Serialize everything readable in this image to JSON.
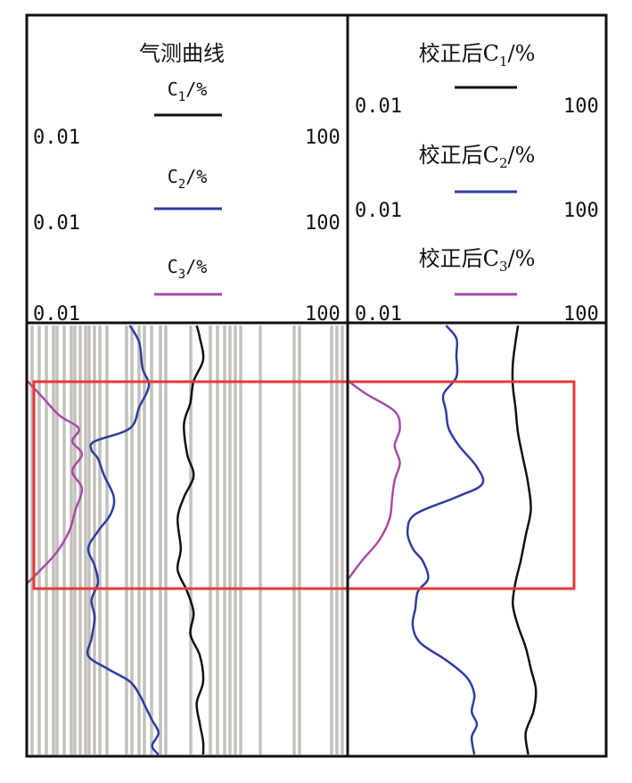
{
  "chart_data": [
    {
      "type": "line",
      "title": "气测曲线",
      "series": [
        {
          "name": "C1/%",
          "key": "C1",
          "color": "#111111",
          "range": [
            0.01,
            100
          ],
          "d": [
            [
              0,
              0.53
            ],
            [
              0.03,
              0.54
            ],
            [
              0.08,
              0.55
            ],
            [
              0.13,
              0.52
            ],
            [
              0.18,
              0.51
            ],
            [
              0.23,
              0.49
            ],
            [
              0.3,
              0.5
            ],
            [
              0.35,
              0.52
            ],
            [
              0.4,
              0.49
            ],
            [
              0.45,
              0.47
            ],
            [
              0.52,
              0.48
            ],
            [
              0.57,
              0.47
            ],
            [
              0.62,
              0.5
            ],
            [
              0.67,
              0.52
            ],
            [
              0.72,
              0.51
            ],
            [
              0.77,
              0.54
            ],
            [
              0.83,
              0.55
            ],
            [
              0.88,
              0.53
            ],
            [
              0.93,
              0.54
            ],
            [
              0.97,
              0.55
            ],
            [
              1.0,
              0.55
            ]
          ]
        },
        {
          "name": "C2/%",
          "key": "C2",
          "color": "#2e3d9f",
          "range": [
            0.01,
            100
          ],
          "d": [
            [
              0,
              0.32
            ],
            [
              0.04,
              0.35
            ],
            [
              0.1,
              0.36
            ],
            [
              0.14,
              0.38
            ],
            [
              0.19,
              0.35
            ],
            [
              0.24,
              0.32
            ],
            [
              0.27,
              0.21
            ],
            [
              0.29,
              0.2
            ],
            [
              0.31,
              0.22
            ],
            [
              0.35,
              0.24
            ],
            [
              0.4,
              0.27
            ],
            [
              0.44,
              0.26
            ],
            [
              0.48,
              0.22
            ],
            [
              0.52,
              0.19
            ],
            [
              0.56,
              0.21
            ],
            [
              0.6,
              0.22
            ],
            [
              0.64,
              0.2
            ],
            [
              0.68,
              0.21
            ],
            [
              0.73,
              0.2
            ],
            [
              0.77,
              0.19
            ],
            [
              0.8,
              0.25
            ],
            [
              0.83,
              0.32
            ],
            [
              0.86,
              0.35
            ],
            [
              0.89,
              0.37
            ],
            [
              0.92,
              0.39
            ],
            [
              0.95,
              0.41
            ],
            [
              0.98,
              0.39
            ],
            [
              1.0,
              0.41
            ]
          ]
        },
        {
          "name": "C3/%",
          "key": "C3",
          "color": "#a64ca6",
          "range": [
            0.01,
            100
          ],
          "d": [
            [
              0.13,
              0.0
            ],
            [
              0.17,
              0.05
            ],
            [
              0.21,
              0.1
            ],
            [
              0.24,
              0.16
            ],
            [
              0.27,
              0.14
            ],
            [
              0.3,
              0.17
            ],
            [
              0.34,
              0.14
            ],
            [
              0.38,
              0.17
            ],
            [
              0.43,
              0.15
            ],
            [
              0.48,
              0.13
            ],
            [
              0.53,
              0.09
            ],
            [
              0.57,
              0.04
            ],
            [
              0.6,
              0.0
            ]
          ]
        }
      ]
    },
    {
      "type": "line",
      "title": "",
      "series": [
        {
          "name": "校正后C1/%",
          "key": "C1",
          "color": "#111111",
          "range": [
            0.01,
            100
          ],
          "d": [
            [
              0,
              0.66
            ],
            [
              0.04,
              0.65
            ],
            [
              0.09,
              0.64
            ],
            [
              0.14,
              0.64
            ],
            [
              0.19,
              0.65
            ],
            [
              0.25,
              0.66
            ],
            [
              0.31,
              0.68
            ],
            [
              0.37,
              0.7
            ],
            [
              0.43,
              0.71
            ],
            [
              0.49,
              0.69
            ],
            [
              0.55,
              0.67
            ],
            [
              0.6,
              0.65
            ],
            [
              0.65,
              0.64
            ],
            [
              0.7,
              0.66
            ],
            [
              0.75,
              0.69
            ],
            [
              0.8,
              0.71
            ],
            [
              0.85,
              0.73
            ],
            [
              0.9,
              0.72
            ],
            [
              0.95,
              0.69
            ],
            [
              1.0,
              0.7
            ]
          ]
        },
        {
          "name": "校正后C2/%",
          "key": "C2",
          "color": "#2e3d9f",
          "range": [
            0.01,
            100
          ],
          "d": [
            [
              0,
              0.38
            ],
            [
              0.03,
              0.42
            ],
            [
              0.07,
              0.42
            ],
            [
              0.12,
              0.42
            ],
            [
              0.16,
              0.37
            ],
            [
              0.2,
              0.38
            ],
            [
              0.24,
              0.39
            ],
            [
              0.28,
              0.43
            ],
            [
              0.33,
              0.5
            ],
            [
              0.37,
              0.52
            ],
            [
              0.4,
              0.42
            ],
            [
              0.44,
              0.26
            ],
            [
              0.48,
              0.23
            ],
            [
              0.52,
              0.25
            ],
            [
              0.55,
              0.29
            ],
            [
              0.59,
              0.31
            ],
            [
              0.62,
              0.27
            ],
            [
              0.66,
              0.26
            ],
            [
              0.7,
              0.25
            ],
            [
              0.74,
              0.28
            ],
            [
              0.78,
              0.38
            ],
            [
              0.82,
              0.46
            ],
            [
              0.86,
              0.49
            ],
            [
              0.9,
              0.48
            ],
            [
              0.93,
              0.5
            ],
            [
              0.96,
              0.48
            ],
            [
              1.0,
              0.49
            ]
          ]
        },
        {
          "name": "校正后C3/%",
          "key": "C3",
          "color": "#a64ca6",
          "range": [
            0.01,
            100
          ],
          "d": [
            [
              0.13,
              0.0
            ],
            [
              0.16,
              0.07
            ],
            [
              0.2,
              0.18
            ],
            [
              0.24,
              0.2
            ],
            [
              0.28,
              0.18
            ],
            [
              0.32,
              0.2
            ],
            [
              0.36,
              0.18
            ],
            [
              0.4,
              0.17
            ],
            [
              0.45,
              0.16
            ],
            [
              0.5,
              0.12
            ],
            [
              0.55,
              0.05
            ],
            [
              0.59,
              0.0
            ]
          ]
        }
      ]
    }
  ],
  "panels": {
    "left_title": "气测曲线",
    "right_title": "校正后C1/%",
    "range_min": "0.01",
    "range_max": "100",
    "left_keys": [
      {
        "base": "C",
        "sub": "1",
        "unit": "/%"
      },
      {
        "base": "C",
        "sub": "2",
        "unit": "/%"
      },
      {
        "base": "C",
        "sub": "3",
        "unit": "/%"
      }
    ],
    "right_keys": [
      {
        "prefix": "校正后",
        "base": "C",
        "sub": "1",
        "unit": "/%"
      },
      {
        "prefix": "校正后",
        "base": "C",
        "sub": "2",
        "unit": "/%"
      },
      {
        "prefix": "校正后",
        "base": "C",
        "sub": "3",
        "unit": "/%"
      }
    ]
  },
  "highlight_color": "#e53935",
  "grid_color": "#c4c0bb"
}
